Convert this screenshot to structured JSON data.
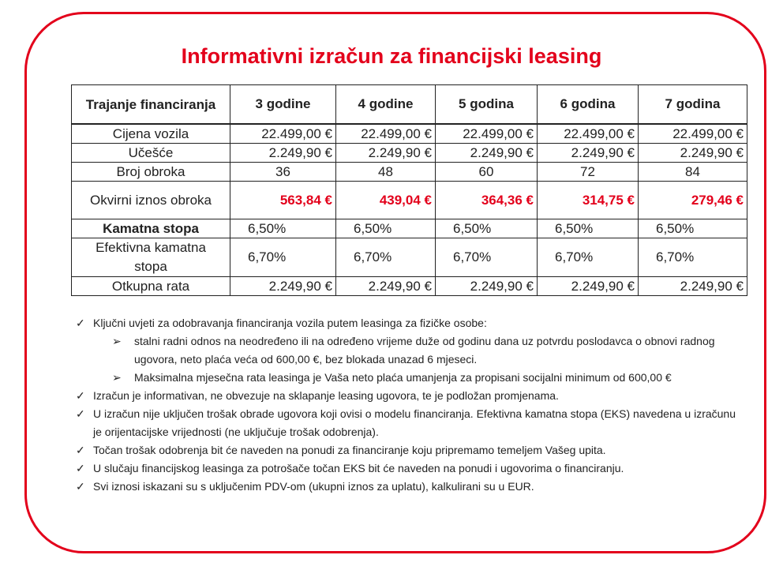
{
  "title": "Informativni izračun za financijski leasing",
  "table": {
    "header": [
      "Trajanje financiranja",
      "3 godine",
      "4 godine",
      "5 godina",
      "6 godina",
      "7 godina"
    ],
    "rows": [
      {
        "label": "Cijena vozila",
        "values": [
          "22.499,00 €",
          "22.499,00 €",
          "22.499,00 €",
          "22.499,00 €",
          "22.499,00 €"
        ]
      },
      {
        "label": "Učešće",
        "values": [
          "2.249,90 €",
          "2.249,90 €",
          "2.249,90 €",
          "2.249,90 €",
          "2.249,90 €"
        ]
      },
      {
        "label": "Broj obroka",
        "values": [
          "36",
          "48",
          "60",
          "72",
          "84"
        ]
      },
      {
        "label": "Okvirni iznos obroka",
        "values": [
          "563,84 €",
          "439,04 €",
          "364,36 €",
          "314,75 €",
          "279,46 €"
        ]
      },
      {
        "label": "Kamatna stopa",
        "values": [
          "6,50%",
          "6,50%",
          "6,50%",
          "6,50%",
          "6,50%"
        ]
      },
      {
        "label": "Efektivna kamatna stopa",
        "values": [
          "6,70%",
          "6,70%",
          "6,70%",
          "6,70%",
          "6,70%"
        ]
      },
      {
        "label": "Otkupna rata",
        "values": [
          "2.249,90 €",
          "2.249,90 €",
          "2.249,90 €",
          "2.249,90 €",
          "2.249,90 €"
        ]
      }
    ]
  },
  "highlight_color": "#e3001b",
  "notes": [
    {
      "type": "check",
      "text": "Ključni uvjeti za odobravanja financiranja vozila putem leasinga za fizičke osobe:"
    },
    {
      "type": "arrow",
      "text": "stalni radni odnos na neodređeno ili na određeno vrijeme duže od godinu dana uz potvrdu poslodavca o obnovi radnog ugovora, neto plaća veća od 600,00 €, bez blokada unazad 6 mjeseci."
    },
    {
      "type": "arrow",
      "text": "Maksimalna mjesečna rata leasinga je Vaša neto plaća umanjenja za propisani socijalni minimum od 600,00 €"
    },
    {
      "type": "check",
      "text": "Izračun je informativan, ne obvezuje na sklapanje leasing ugovora, te je podložan promjenama."
    },
    {
      "type": "check",
      "text": "U izračun nije uključen trošak obrade ugovora koji ovisi o modelu financiranja. Efektivna kamatna stopa (EKS) navedena u izračunu je orijentacijske vrijednosti (ne uključuje trošak odobrenja)."
    },
    {
      "type": "check",
      "text": "Točan trošak odobrenja bit će naveden na ponudi za financiranje koju pripremamo temeljem Vašeg upita."
    },
    {
      "type": "check",
      "text": "U slučaju financijskog leasinga za potrošače točan EKS bit će naveden na ponudi i ugovorima o financiranju."
    },
    {
      "type": "check",
      "text": "Svi iznosi iskazani su s uključenim PDV-om (ukupni iznos za uplatu), kalkulirani su u EUR."
    }
  ]
}
